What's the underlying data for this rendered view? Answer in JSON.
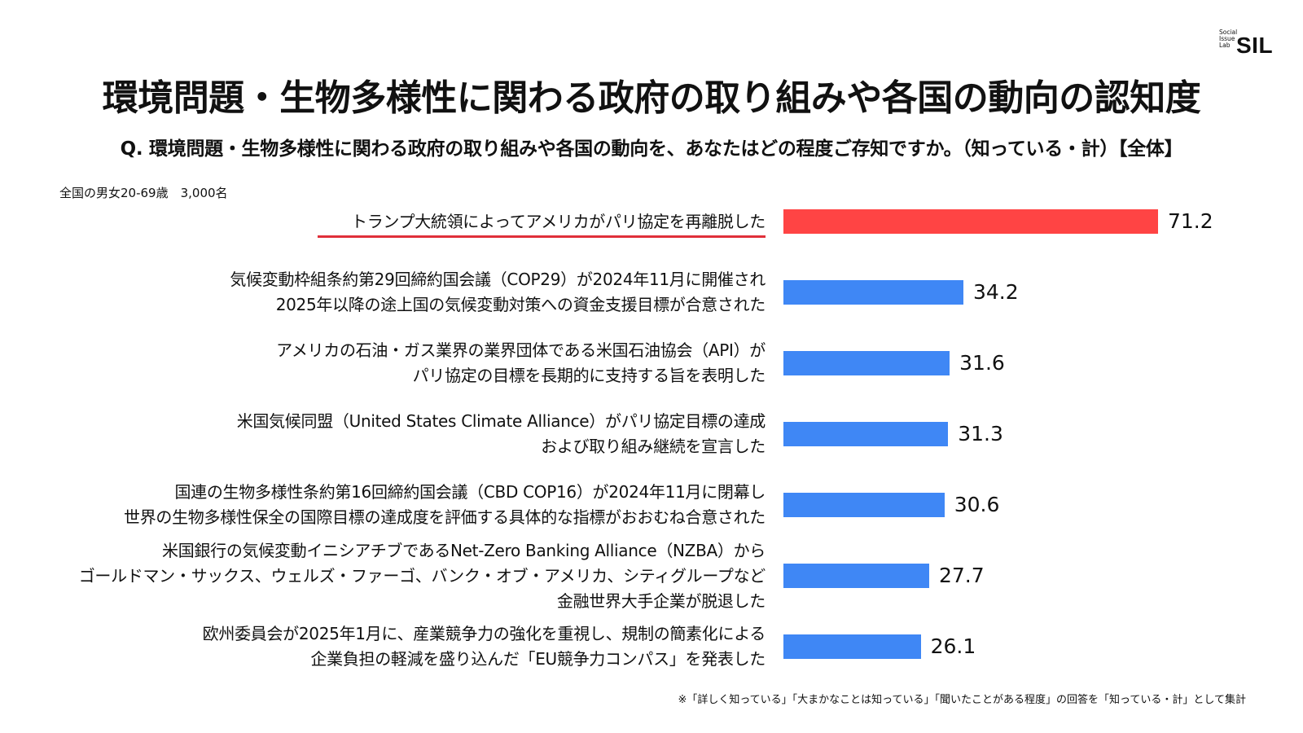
{
  "logo": {
    "small_lines": [
      "Social",
      "Issue",
      "Lab"
    ],
    "name": "SIL"
  },
  "title": "環境問題・生物多様性に関わる政府の取り組みや各国の動向の認知度",
  "question": "Q. 環境問題・生物多様性に関わる政府の取り組みや各国の動向を、あなたはどの程度ご存知ですか。（知っている・計）【全体】",
  "sample": "全国の男女20-69歳　3,000名",
  "footnote": "※「詳しく知っている」「大まかなことは知っている」「聞いたことがある程度」の回答を「知っている・計」として集計",
  "colors": {
    "highlight": "#ff4444",
    "bar": "#3f87f5",
    "underline": "#e0303a"
  },
  "chart_data": {
    "type": "bar",
    "orientation": "horizontal",
    "title": "環境問題・生物多様性に関わる政府の取り組みや各国の動向の認知度",
    "xlim": [
      0,
      100
    ],
    "categories": [
      [
        "トランプ大統領によってアメリカがパリ協定を再離脱した"
      ],
      [
        "気候変動枠組条約第29回締約国会議（COP29）が2024年11月に開催され",
        "2025年以降の途上国の気候変動対策への資金支援目標が合意された"
      ],
      [
        "アメリカの石油・ガス業界の業界団体である米国石油協会（API）が",
        "パリ協定の目標を長期的に支持する旨を表明した"
      ],
      [
        "米国気候同盟（United States Climate Alliance）がパリ協定目標の達成",
        "および取り組み継続を宣言した"
      ],
      [
        "国連の生物多様性条約第16回締約国会議（CBD COP16）が2024年11月に閉幕し",
        "世界の生物多様性保全の国際目標の達成度を評価する具体的な指標がおおむね合意された"
      ],
      [
        "米国銀行の気候変動イニシアチブであるNet-Zero Banking Alliance（NZBA）から",
        "ゴールドマン・サックス、ウェルズ・ファーゴ、バンク・オブ・アメリカ、シティグループなど",
        "金融世界大手企業が脱退した"
      ],
      [
        "欧州委員会が2025年1月に、産業競争力の強化を重視し、規制の簡素化による",
        "企業負担の軽減を盛り込んだ「EU競争力コンパス」を発表した"
      ]
    ],
    "values": [
      71.2,
      34.2,
      31.6,
      31.3,
      30.6,
      27.7,
      26.1
    ],
    "value_labels": [
      "71.2",
      "34.2",
      "31.6",
      "31.3",
      "30.6",
      "27.7",
      "26.1"
    ],
    "highlight_index": 0,
    "unit": "%"
  }
}
